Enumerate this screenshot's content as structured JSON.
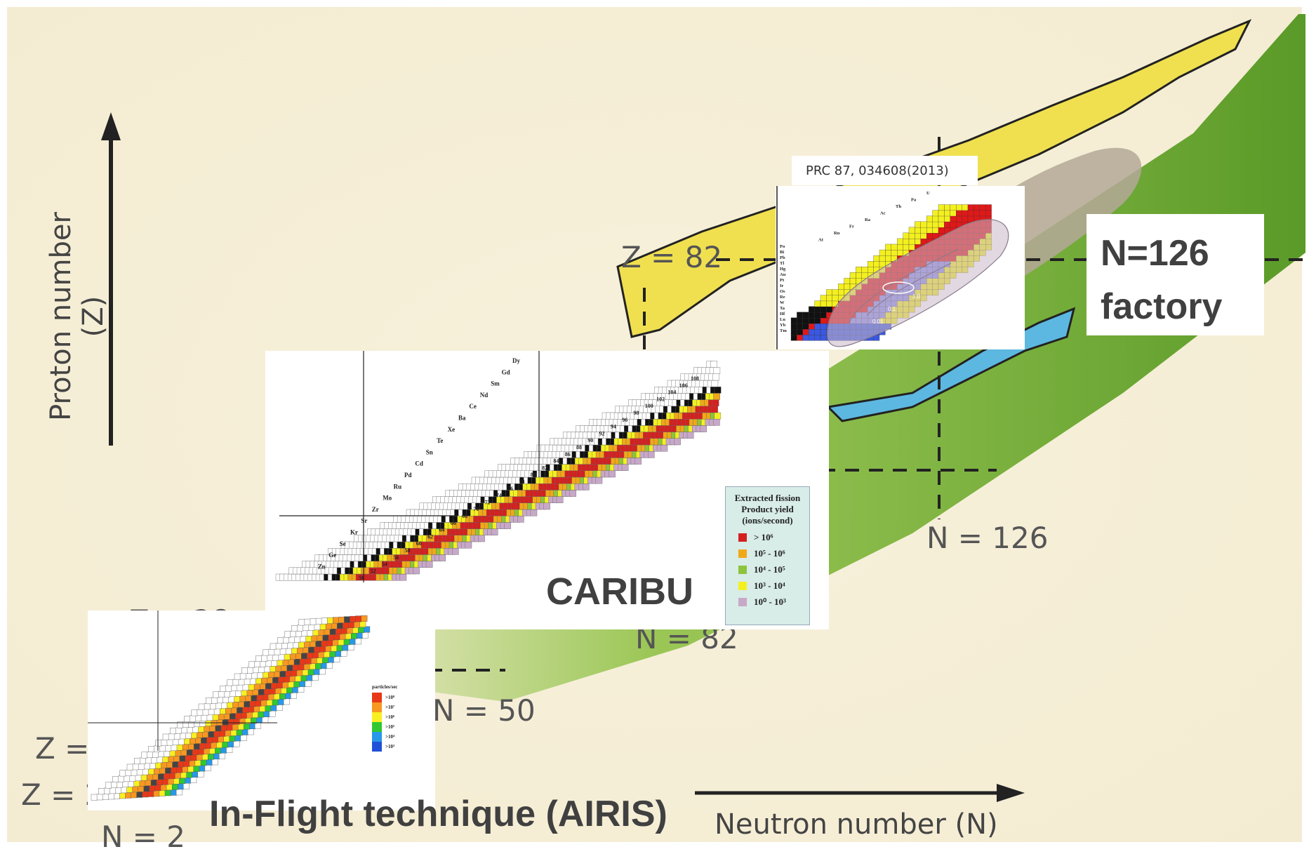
{
  "axes": {
    "y_title": "Proton number (Z)",
    "x_title": "Neutron number (N)"
  },
  "magic_labels": {
    "z82": "Z = 82",
    "n126": "N = 126",
    "n82": "N = 82",
    "n50": "N = 50",
    "z_partial_1": "Z = ",
    "z_partial_2": "Z = 2",
    "n2": "N = 2",
    "z28_partial": "Z = 28"
  },
  "panels": {
    "n126": {
      "citation": "PRC 87, 034608(2013)",
      "label": "N=126 factory",
      "element_labels": [
        "U",
        "Pa",
        "Th",
        "Ac",
        "Ra",
        "Fr",
        "Rn",
        "At",
        "Po",
        "Bi",
        "Pb",
        "Tl",
        "Hg",
        "Au",
        "Pt",
        "Ir",
        "Os",
        "Re",
        "W",
        "Ta",
        "Hf",
        "Lu",
        "Yb",
        "Tm"
      ],
      "contour_labels": [
        "1.0",
        "0.1",
        "0.01"
      ]
    },
    "caribu": {
      "label": "CARIBU",
      "element_labels": [
        "Dy",
        "Gd",
        "Sm",
        "Nd",
        "Ce",
        "Ba",
        "Xe",
        "Te",
        "Sn",
        "Cd",
        "Pd",
        "Ru",
        "Mo",
        "Zr",
        "Sr",
        "Kr",
        "Se",
        "Ge",
        "Zn"
      ],
      "n_labels": [
        "108",
        "106",
        "104",
        "102",
        "100",
        "98",
        "96",
        "94",
        "92",
        "90",
        "88",
        "86",
        "84",
        "82",
        "80",
        "78",
        "76",
        "74",
        "72",
        "70",
        "68",
        "66",
        "64",
        "62",
        "60",
        "58",
        "56",
        "54",
        "52",
        "50"
      ],
      "legend": {
        "title": "Extracted fission Product yield (ions/second)",
        "entries": [
          {
            "label": "> 10^6",
            "color": "#d42020"
          },
          {
            "label": "10^5 - 10^6",
            "color": "#f0a818"
          },
          {
            "label": "10^4 - 10^5",
            "color": "#8cc43c"
          },
          {
            "label": "10^3 - 10^4",
            "color": "#f4f020"
          },
          {
            "label": "10^0 - 10^3",
            "color": "#c8a8c8"
          }
        ]
      }
    },
    "airis": {
      "label": "In-Flight technique (AIRIS)",
      "legend_title": "particles/sec",
      "legend": [
        {
          "label": ">10^8",
          "color": "#e83818"
        },
        {
          "label": ">10^7",
          "color": "#f89820"
        },
        {
          "label": ">10^6",
          "color": "#f8f020"
        },
        {
          "label": ">10^5",
          "color": "#30c830"
        },
        {
          "label": ">10^4",
          "color": "#2898e8"
        },
        {
          "label": ">10^3",
          "color": "#2050d8"
        }
      ]
    }
  },
  "colors": {
    "stable": "#1a1a1a",
    "known_yellow": "#f0e050",
    "green_bg": "#7cb030",
    "beige_bg": "#f7f1dc",
    "rprocess_blue": "#5cb8e0",
    "grey_ellipse": "#b4a898"
  }
}
